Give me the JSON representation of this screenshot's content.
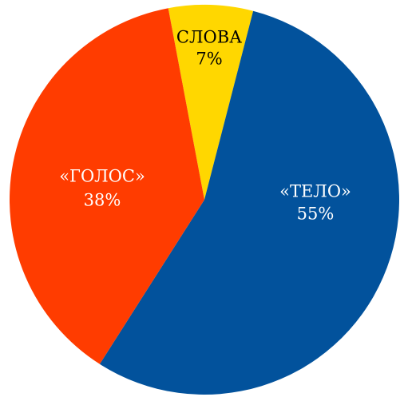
{
  "chart_data": {
    "type": "pie",
    "categories": [
      "СЛОВА",
      "«ТЕЛО»",
      "«ГОЛОС»"
    ],
    "values": [
      7,
      55,
      38
    ],
    "value_labels": [
      "7%",
      "55%",
      "38%"
    ],
    "colors": [
      "#ffd700",
      "#02529c",
      "#ff3c00"
    ],
    "label_colors": [
      "#000000",
      "#ffffff",
      "#ffffff"
    ]
  }
}
